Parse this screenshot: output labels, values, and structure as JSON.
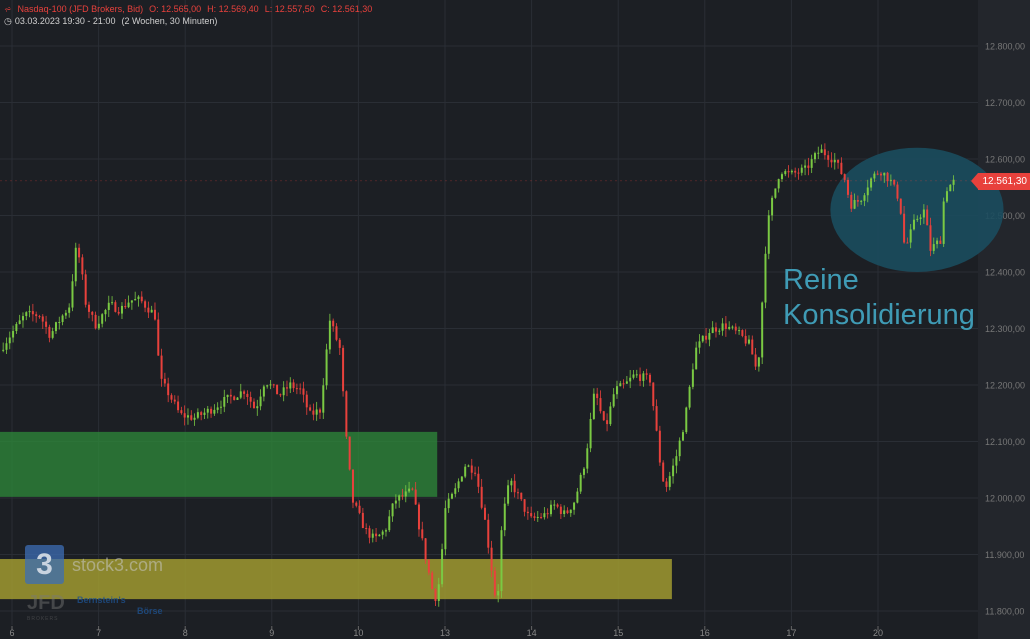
{
  "header": {
    "symbol": "Nasdaq-100 (JFD Brokers, Bid)",
    "open": "O: 12.565,00",
    "high": "H: 12.569,40",
    "low": "L: 12.557,50",
    "close": "C: 12.561,30",
    "period": "03.03.2023 19:30 - 21:00",
    "range": "(2 Wochen, 30 Minuten)"
  },
  "last_price_label": "12.561,30",
  "annotation": {
    "line1": "Reine",
    "line2": "Konsolidierung"
  },
  "watermarks": {
    "stock3": "stock3.com",
    "jfd": "JFD",
    "jfd_sub": "BROKERS",
    "bernstein": "Bernstein's",
    "boerse": "Börse"
  },
  "colors": {
    "background": "#1c1f24",
    "up": "#7ac943",
    "down": "#e8413c",
    "support_zone": "#2e8b3a",
    "demand_zone": "#a09a30",
    "consolidation": "#1b4d5e",
    "annotation": "#3f9bb5"
  },
  "chart_data": {
    "type": "candlestick",
    "title": "",
    "ylim": [
      11780,
      12880
    ],
    "y_ticks": [
      "11.800,00",
      "11.900,00",
      "12.000,00",
      "12.100,00",
      "12.200,00",
      "12.300,00",
      "12.400,00",
      "12.500,00",
      "12.600,00",
      "12.700,00",
      "12.800,00"
    ],
    "y_tick_values": [
      11800,
      11900,
      12000,
      12100,
      12200,
      12300,
      12400,
      12500,
      12600,
      12700,
      12800
    ],
    "x_ticks": [
      "6",
      "7",
      "8",
      "9",
      "10",
      "13",
      "14",
      "15",
      "16",
      "17",
      "20"
    ],
    "grid": true,
    "last_price": 12561.3,
    "price_path_session_x_vs_price": [
      [
        -0.14,
        12262
      ],
      [
        -0.02,
        12288
      ],
      [
        0.15,
        12324
      ],
      [
        0.32,
        12324
      ],
      [
        0.44,
        12288
      ],
      [
        0.55,
        12315
      ],
      [
        0.67,
        12342
      ],
      [
        0.73,
        12439
      ],
      [
        0.79,
        12421
      ],
      [
        0.84,
        12350
      ],
      [
        0.96,
        12306
      ],
      [
        1.13,
        12342
      ],
      [
        1.25,
        12333
      ],
      [
        1.36,
        12350
      ],
      [
        1.48,
        12350
      ],
      [
        1.65,
        12324
      ],
      [
        1.71,
        12209
      ],
      [
        1.82,
        12182
      ],
      [
        1.94,
        12147
      ],
      [
        2.11,
        12142
      ],
      [
        2.29,
        12156
      ],
      [
        2.46,
        12173
      ],
      [
        2.58,
        12182
      ],
      [
        2.69,
        12191
      ],
      [
        2.81,
        12156
      ],
      [
        2.92,
        12209
      ],
      [
        3.09,
        12182
      ],
      [
        3.21,
        12200
      ],
      [
        3.33,
        12191
      ],
      [
        3.44,
        12147
      ],
      [
        3.56,
        12156
      ],
      [
        3.67,
        12315
      ],
      [
        3.79,
        12262
      ],
      [
        3.85,
        12120
      ],
      [
        3.93,
        11996
      ],
      [
        4.08,
        11943
      ],
      [
        4.19,
        11926
      ],
      [
        4.31,
        11943
      ],
      [
        4.42,
        11996
      ],
      [
        4.54,
        12005
      ],
      [
        4.62,
        12014
      ],
      [
        4.71,
        11943
      ],
      [
        4.83,
        11855
      ],
      [
        4.88,
        11819
      ],
      [
        4.94,
        11855
      ],
      [
        5.0,
        11979
      ],
      [
        5.12,
        12014
      ],
      [
        5.23,
        12058
      ],
      [
        5.35,
        12050
      ],
      [
        5.46,
        11961
      ],
      [
        5.54,
        11873
      ],
      [
        5.6,
        11802
      ],
      [
        5.66,
        11961
      ],
      [
        5.75,
        12032
      ],
      [
        5.87,
        11996
      ],
      [
        5.98,
        11961
      ],
      [
        6.15,
        11970
      ],
      [
        6.27,
        11988
      ],
      [
        6.39,
        11970
      ],
      [
        6.5,
        11996
      ],
      [
        6.62,
        12067
      ],
      [
        6.73,
        12191
      ],
      [
        6.85,
        12120
      ],
      [
        6.96,
        12191
      ],
      [
        7.08,
        12200
      ],
      [
        7.19,
        12218
      ],
      [
        7.37,
        12209
      ],
      [
        7.48,
        12067
      ],
      [
        7.54,
        12014
      ],
      [
        7.66,
        12067
      ],
      [
        7.77,
        12138
      ],
      [
        7.89,
        12262
      ],
      [
        8.06,
        12297
      ],
      [
        8.23,
        12306
      ],
      [
        8.41,
        12288
      ],
      [
        8.52,
        12271
      ],
      [
        8.61,
        12218
      ],
      [
        8.7,
        12439
      ],
      [
        8.75,
        12510
      ],
      [
        8.87,
        12581
      ],
      [
        8.98,
        12572
      ],
      [
        9.16,
        12581
      ],
      [
        9.33,
        12616
      ],
      [
        9.5,
        12598
      ],
      [
        9.62,
        12563
      ],
      [
        9.68,
        12519
      ],
      [
        9.79,
        12527
      ],
      [
        9.91,
        12563
      ],
      [
        10.02,
        12581
      ],
      [
        10.14,
        12563
      ],
      [
        10.25,
        12527
      ],
      [
        10.31,
        12439
      ],
      [
        10.43,
        12492
      ],
      [
        10.54,
        12510
      ],
      [
        10.6,
        12439
      ],
      [
        10.72,
        12457
      ],
      [
        10.77,
        12545
      ],
      [
        10.89,
        12561.3
      ]
    ],
    "zones": [
      {
        "name": "support",
        "from": 12002,
        "to": 12117,
        "x_start": -0.14,
        "x_end": 4.91
      },
      {
        "name": "demand",
        "from": 11821,
        "to": 11892,
        "x_start": -0.14,
        "x_end": 7.62
      }
    ],
    "consolidation_ellipse": {
      "x_center": 10.45,
      "price_center": 12510,
      "x_radius": 1.0,
      "price_radius": 110
    }
  }
}
